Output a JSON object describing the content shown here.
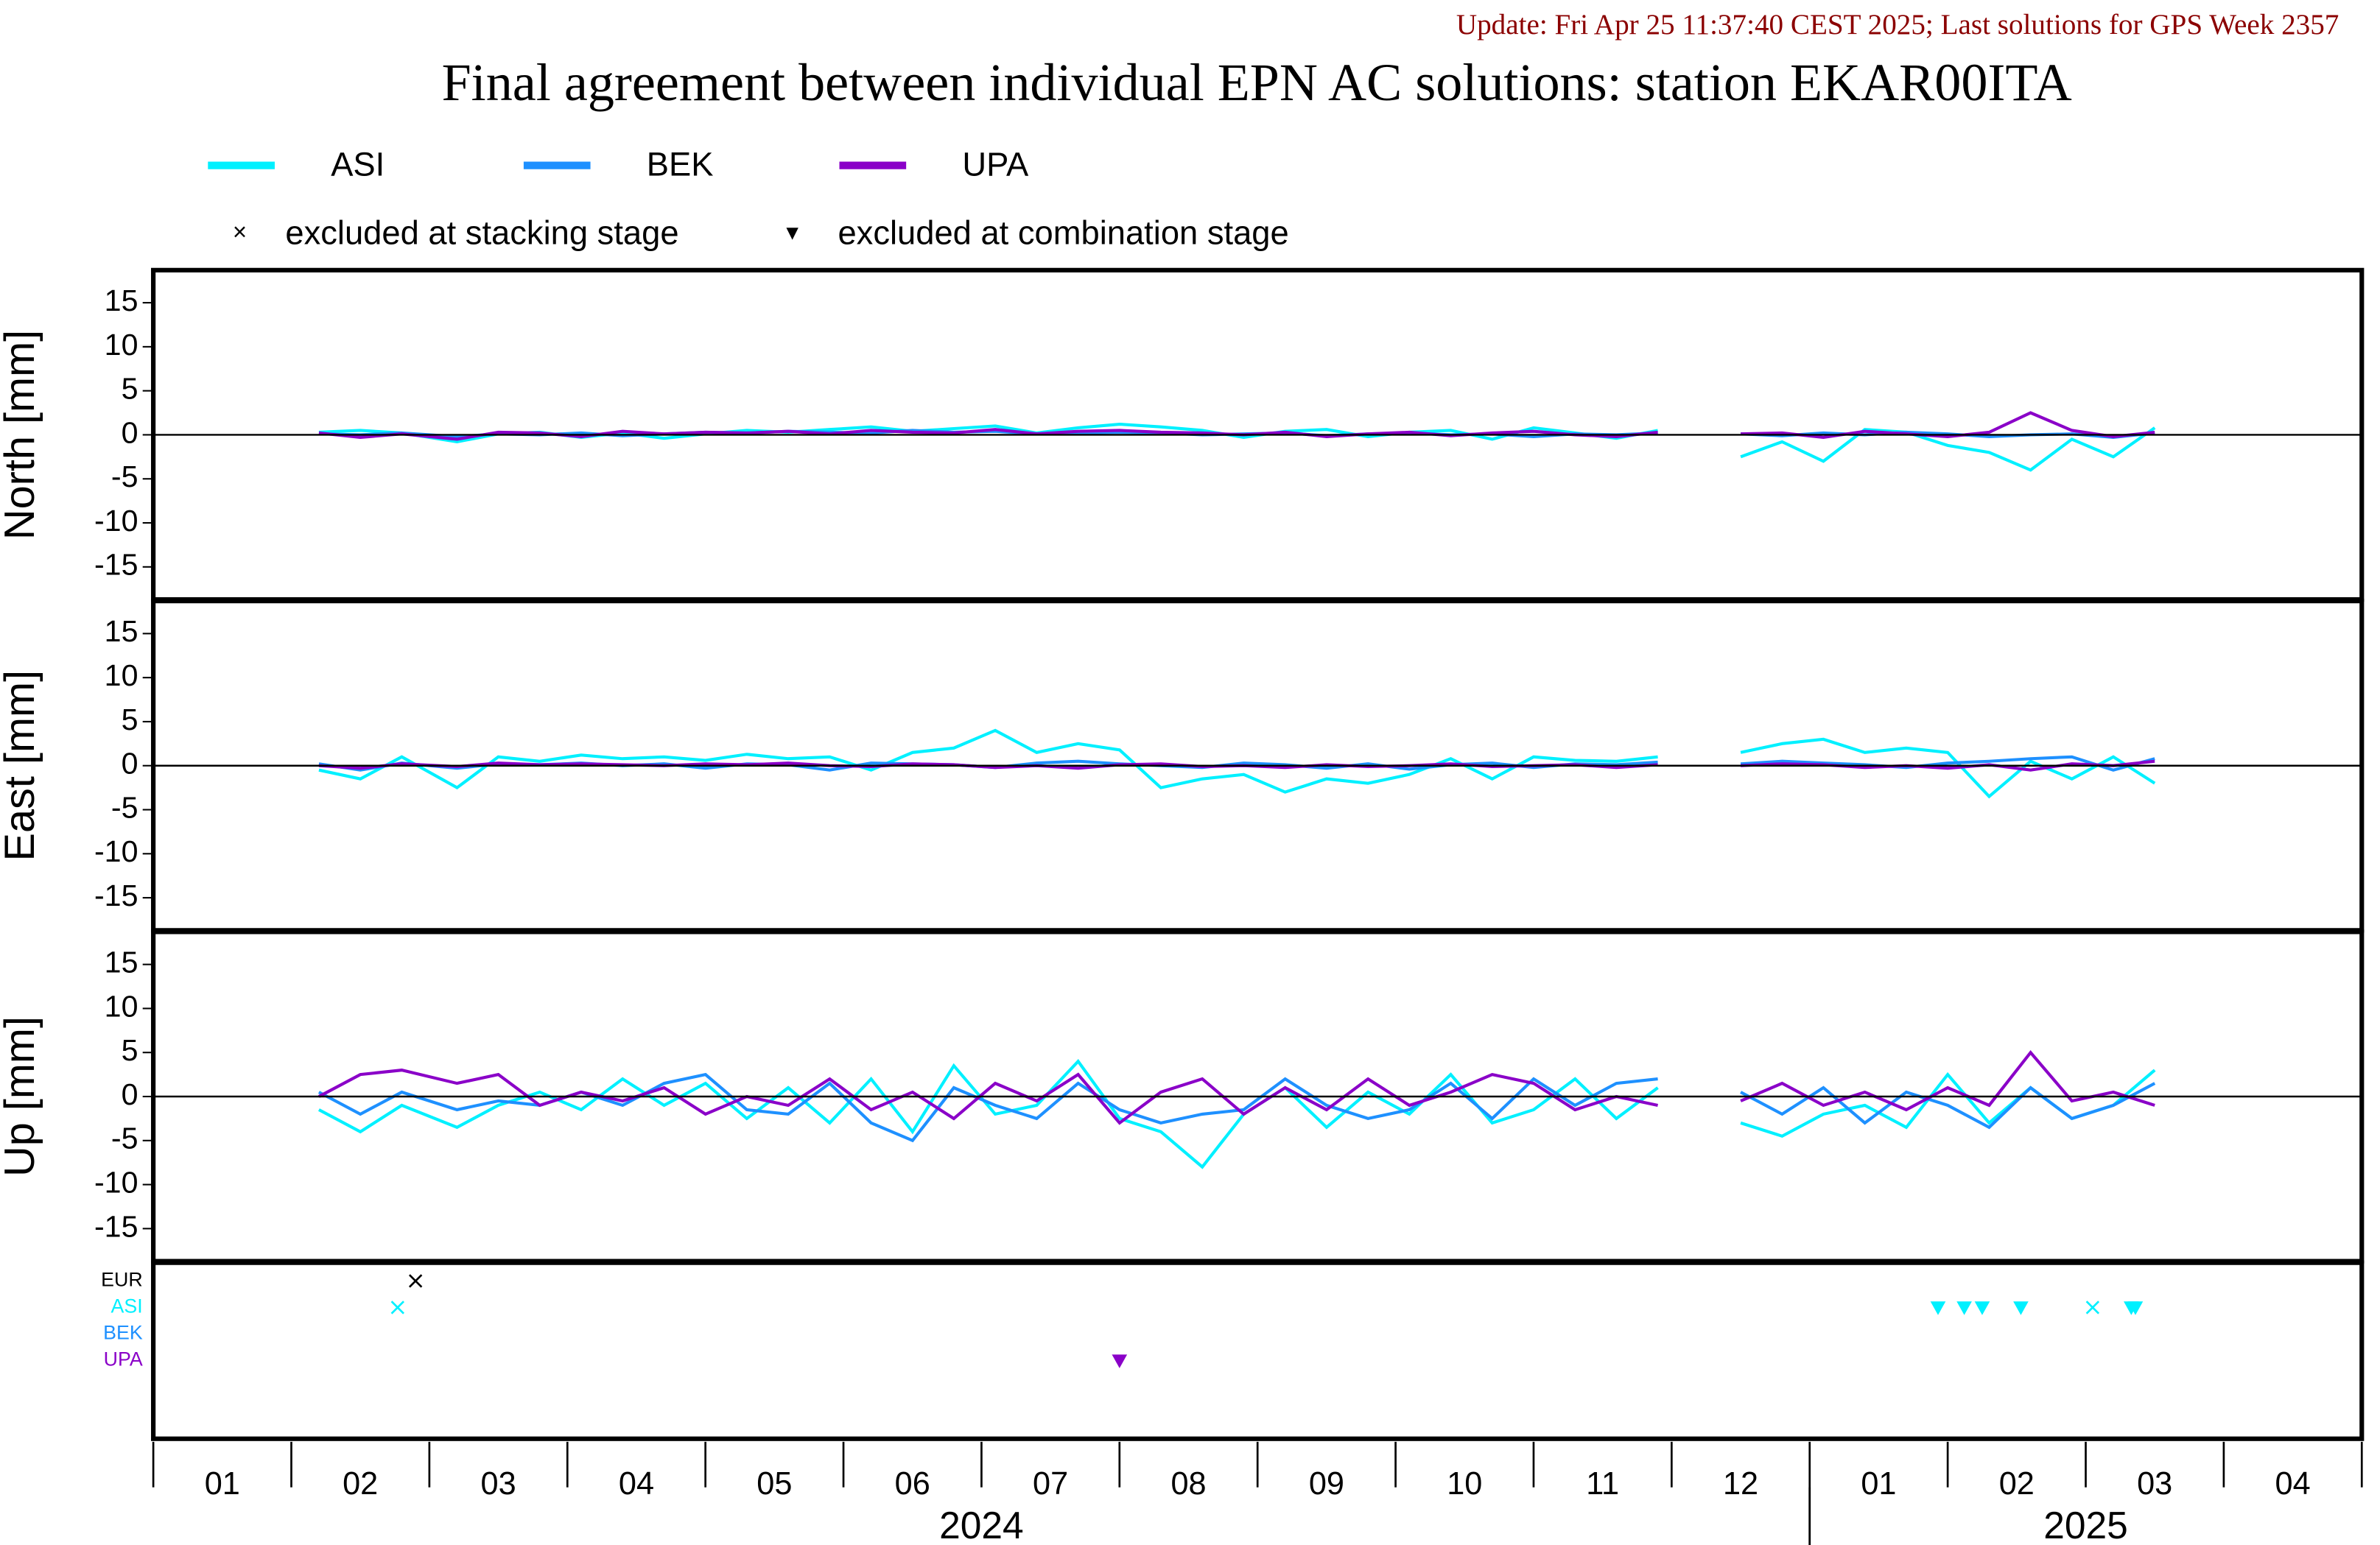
{
  "header": {
    "update": "Update: Fri Apr 25 11:37:40 CEST 2025; Last solutions for GPS Week 2357",
    "title": "Final agreement between individual EPN AC solutions: station EKAR00ITA"
  },
  "markers": [
    {
      "symbol": "×",
      "label": "excluded at stacking stage"
    },
    {
      "symbol": "▾",
      "label": "excluded at combination stage"
    }
  ],
  "months": [
    "01",
    "02",
    "03",
    "04",
    "05",
    "06",
    "07",
    "08",
    "09",
    "10",
    "11",
    "12",
    "01",
    "02",
    "03",
    "04"
  ],
  "year_labels": [
    {
      "value": 6,
      "label": "2024"
    },
    {
      "value": 14,
      "label": "2025"
    }
  ],
  "year_ticks": [
    12
  ],
  "chart_data": [
    {
      "type": "line",
      "ylabel": "North [mm]",
      "xlim": [
        0,
        16
      ],
      "xticks": [
        0,
        1,
        2,
        3,
        4,
        5,
        6,
        7,
        8,
        9,
        10,
        11,
        12,
        13,
        14,
        15,
        16
      ],
      "ylim": [
        -18.7,
        18.7
      ],
      "yticks": [
        -15,
        -10,
        -5,
        0,
        5,
        10,
        15
      ],
      "zero_line": true,
      "x": [
        1.2,
        1.5,
        1.8,
        2.2,
        2.5,
        2.8,
        3.1,
        3.4,
        3.7,
        4.0,
        4.3,
        4.6,
        4.9,
        5.2,
        5.5,
        5.8,
        6.1,
        6.4,
        6.7,
        7.0,
        7.3,
        7.6,
        7.9,
        8.2,
        8.5,
        8.8,
        9.1,
        9.4,
        9.7,
        10.0,
        10.3,
        10.6,
        10.9,
        11.2,
        11.5,
        11.8,
        12.1,
        12.4,
        12.7,
        13.0,
        13.3,
        13.6,
        13.9,
        14.2,
        14.5
      ],
      "series": [
        {
          "name": "ASI",
          "color": "#00f0ff",
          "values": [
            0.3,
            0.5,
            0.2,
            -0.8,
            0.1,
            0.3,
            -0.3,
            0.2,
            -0.4,
            0.1,
            0.5,
            0.3,
            0.6,
            0.9,
            0.4,
            0.7,
            1.0,
            0.2,
            0.8,
            1.2,
            0.9,
            0.5,
            -0.3,
            0.4,
            0.6,
            -0.2,
            0.3,
            0.5,
            -0.5,
            0.8,
            0.2,
            -0.4,
            0.5,
            null,
            -2.5,
            -0.8,
            -3.0,
            0.6,
            0.3,
            -1.2,
            -2.0,
            -4.0,
            -0.5,
            -2.5,
            0.8
          ]
        },
        {
          "name": "BEK",
          "color": "#1e90ff",
          "values": [
            0.1,
            0.0,
            0.2,
            -0.2,
            0.1,
            0.0,
            0.2,
            -0.1,
            0.1,
            0.3,
            0.2,
            0.4,
            0.3,
            0.2,
            0.5,
            0.3,
            0.4,
            0.1,
            0.2,
            0.3,
            0.2,
            0.0,
            0.1,
            0.2,
            -0.1,
            0.1,
            0.2,
            0.0,
            0.1,
            -0.2,
            0.1,
            0.0,
            0.2,
            null,
            0.1,
            -0.1,
            0.2,
            0.0,
            0.3,
            0.1,
            -0.2,
            0.0,
            0.1,
            -0.3,
            0.2
          ]
        },
        {
          "name": "UPA",
          "color": "#8a00c8",
          "values": [
            0.2,
            -0.3,
            0.1,
            -0.5,
            0.3,
            0.2,
            -0.2,
            0.4,
            0.1,
            0.3,
            0.2,
            0.4,
            0.1,
            0.5,
            0.3,
            0.2,
            0.6,
            0.1,
            0.4,
            0.5,
            0.3,
            0.2,
            0.0,
            0.3,
            -0.2,
            0.1,
            0.3,
            -0.1,
            0.2,
            0.4,
            0.0,
            -0.2,
            0.3,
            null,
            0.1,
            0.2,
            -0.3,
            0.4,
            0.1,
            -0.2,
            0.3,
            2.5,
            0.5,
            -0.2,
            0.3
          ]
        }
      ]
    },
    {
      "type": "line",
      "ylabel": "East [mm]",
      "xlim": [
        0,
        16
      ],
      "xticks": [
        0,
        1,
        2,
        3,
        4,
        5,
        6,
        7,
        8,
        9,
        10,
        11,
        12,
        13,
        14,
        15,
        16
      ],
      "ylim": [
        -18.7,
        18.7
      ],
      "yticks": [
        -15,
        -10,
        -5,
        0,
        5,
        10,
        15
      ],
      "zero_line": true,
      "x": [
        1.2,
        1.5,
        1.8,
        2.2,
        2.5,
        2.8,
        3.1,
        3.4,
        3.7,
        4.0,
        4.3,
        4.6,
        4.9,
        5.2,
        5.5,
        5.8,
        6.1,
        6.4,
        6.7,
        7.0,
        7.3,
        7.6,
        7.9,
        8.2,
        8.5,
        8.8,
        9.1,
        9.4,
        9.7,
        10.0,
        10.3,
        10.6,
        10.9,
        11.2,
        11.5,
        11.8,
        12.1,
        12.4,
        12.7,
        13.0,
        13.3,
        13.6,
        13.9,
        14.2,
        14.5
      ],
      "series": [
        {
          "name": "ASI",
          "color": "#00f0ff",
          "values": [
            -0.5,
            -1.5,
            1.0,
            -2.5,
            1.0,
            0.5,
            1.2,
            0.8,
            1.0,
            0.6,
            1.3,
            0.8,
            1.0,
            -0.5,
            1.5,
            2.0,
            4.0,
            1.5,
            2.5,
            1.8,
            -2.5,
            -1.5,
            -1.0,
            -3.0,
            -1.5,
            -2.0,
            -1.0,
            0.8,
            -1.5,
            1.0,
            0.6,
            0.5,
            1.0,
            null,
            1.5,
            2.5,
            3.0,
            1.5,
            2.0,
            1.5,
            -3.5,
            0.5,
            -1.5,
            1.0,
            -2.0
          ]
        },
        {
          "name": "BEK",
          "color": "#1e90ff",
          "values": [
            0.2,
            -0.5,
            0.3,
            -0.3,
            0.2,
            0.1,
            0.3,
            0.0,
            0.2,
            -0.3,
            0.2,
            0.1,
            -0.5,
            0.3,
            0.2,
            0.1,
            -0.2,
            0.3,
            0.5,
            0.2,
            0.0,
            -0.2,
            0.3,
            0.1,
            -0.3,
            0.2,
            -0.4,
            0.1,
            0.3,
            -0.2,
            0.2,
            0.1,
            0.4,
            null,
            0.2,
            0.5,
            0.3,
            0.1,
            -0.2,
            0.3,
            0.5,
            0.8,
            1.0,
            -0.5,
            0.8
          ]
        },
        {
          "name": "UPA",
          "color": "#8a00c8",
          "values": [
            0.0,
            -0.3,
            0.2,
            -0.1,
            0.3,
            0.1,
            0.2,
            0.1,
            0.0,
            0.2,
            0.1,
            0.3,
            0.0,
            -0.1,
            0.2,
            0.1,
            -0.2,
            0.0,
            -0.3,
            0.1,
            0.2,
            -0.1,
            0.0,
            -0.2,
            0.1,
            -0.1,
            0.0,
            0.2,
            -0.1,
            0.0,
            0.1,
            -0.2,
            0.1,
            null,
            0.0,
            0.2,
            0.1,
            -0.2,
            0.0,
            -0.3,
            0.1,
            -0.5,
            0.2,
            0.0,
            0.5
          ]
        }
      ]
    },
    {
      "type": "line",
      "ylabel": "Up [mm]",
      "xlim": [
        0,
        16
      ],
      "xticks": [
        0,
        1,
        2,
        3,
        4,
        5,
        6,
        7,
        8,
        9,
        10,
        11,
        12,
        13,
        14,
        15,
        16
      ],
      "ylim": [
        -18.7,
        18.7
      ],
      "yticks": [
        -15,
        -10,
        -5,
        0,
        5,
        10,
        15
      ],
      "zero_line": true,
      "x": [
        1.2,
        1.5,
        1.8,
        2.2,
        2.5,
        2.8,
        3.1,
        3.4,
        3.7,
        4.0,
        4.3,
        4.6,
        4.9,
        5.2,
        5.5,
        5.8,
        6.1,
        6.4,
        6.7,
        7.0,
        7.3,
        7.6,
        7.9,
        8.2,
        8.5,
        8.8,
        9.1,
        9.4,
        9.7,
        10.0,
        10.3,
        10.6,
        10.9,
        11.2,
        11.5,
        11.8,
        12.1,
        12.4,
        12.7,
        13.0,
        13.3,
        13.6,
        13.9,
        14.2,
        14.5
      ],
      "series": [
        {
          "name": "ASI",
          "color": "#00f0ff",
          "values": [
            -1.5,
            -4.0,
            -1.0,
            -3.5,
            -1.0,
            0.5,
            -1.5,
            2.0,
            -1.0,
            1.5,
            -2.5,
            1.0,
            -3.0,
            2.0,
            -4.0,
            3.5,
            -2.0,
            -1.0,
            4.0,
            -2.5,
            -4.0,
            -8.0,
            -2.0,
            1.0,
            -3.5,
            0.5,
            -2.0,
            2.5,
            -3.0,
            -1.5,
            2.0,
            -2.5,
            1.0,
            null,
            -3.0,
            -4.5,
            -2.0,
            -1.0,
            -3.5,
            2.5,
            -3.0,
            1.0,
            -2.5,
            -1.0,
            3.0
          ]
        },
        {
          "name": "BEK",
          "color": "#1e90ff",
          "values": [
            0.5,
            -2.0,
            0.5,
            -1.5,
            -0.5,
            -1.0,
            0.5,
            -1.0,
            1.5,
            2.5,
            -1.5,
            -2.0,
            1.5,
            -3.0,
            -5.0,
            1.0,
            -1.0,
            -2.5,
            1.5,
            -1.5,
            -3.0,
            -2.0,
            -1.5,
            2.0,
            -1.0,
            -2.5,
            -1.5,
            1.5,
            -2.5,
            2.0,
            -1.0,
            1.5,
            2.0,
            null,
            0.5,
            -2.0,
            1.0,
            -3.0,
            0.5,
            -1.0,
            -3.5,
            1.0,
            -2.5,
            -1.0,
            1.5
          ]
        },
        {
          "name": "UPA",
          "color": "#8a00c8",
          "values": [
            0.0,
            2.5,
            3.0,
            1.5,
            2.5,
            -1.0,
            0.5,
            -0.5,
            1.0,
            -2.0,
            0.0,
            -1.0,
            2.0,
            -1.5,
            0.5,
            -2.5,
            1.5,
            -0.5,
            2.5,
            -3.0,
            0.5,
            2.0,
            -2.0,
            1.0,
            -1.5,
            2.0,
            -1.0,
            0.5,
            2.5,
            1.5,
            -1.5,
            0.0,
            -1.0,
            null,
            -0.5,
            1.5,
            -1.0,
            0.5,
            -1.5,
            1.0,
            -1.0,
            5.0,
            -0.5,
            0.5,
            -1.0
          ]
        }
      ]
    },
    {
      "type": "exclusions",
      "xlim": [
        0,
        16
      ],
      "series": [
        {
          "name": "EUR",
          "color": "#000000",
          "stacking": [
            1.9
          ],
          "combination": []
        },
        {
          "name": "ASI",
          "color": "#00f0ff",
          "stacking": [
            1.77,
            14.05
          ],
          "combination": [
            12.93,
            13.12,
            13.25,
            13.53,
            14.33,
            14.36
          ]
        },
        {
          "name": "BEK",
          "color": "#1e90ff",
          "stacking": [],
          "combination": []
        },
        {
          "name": "UPA",
          "color": "#8a00c8",
          "stacking": [],
          "combination": [
            7.0
          ]
        }
      ]
    }
  ]
}
